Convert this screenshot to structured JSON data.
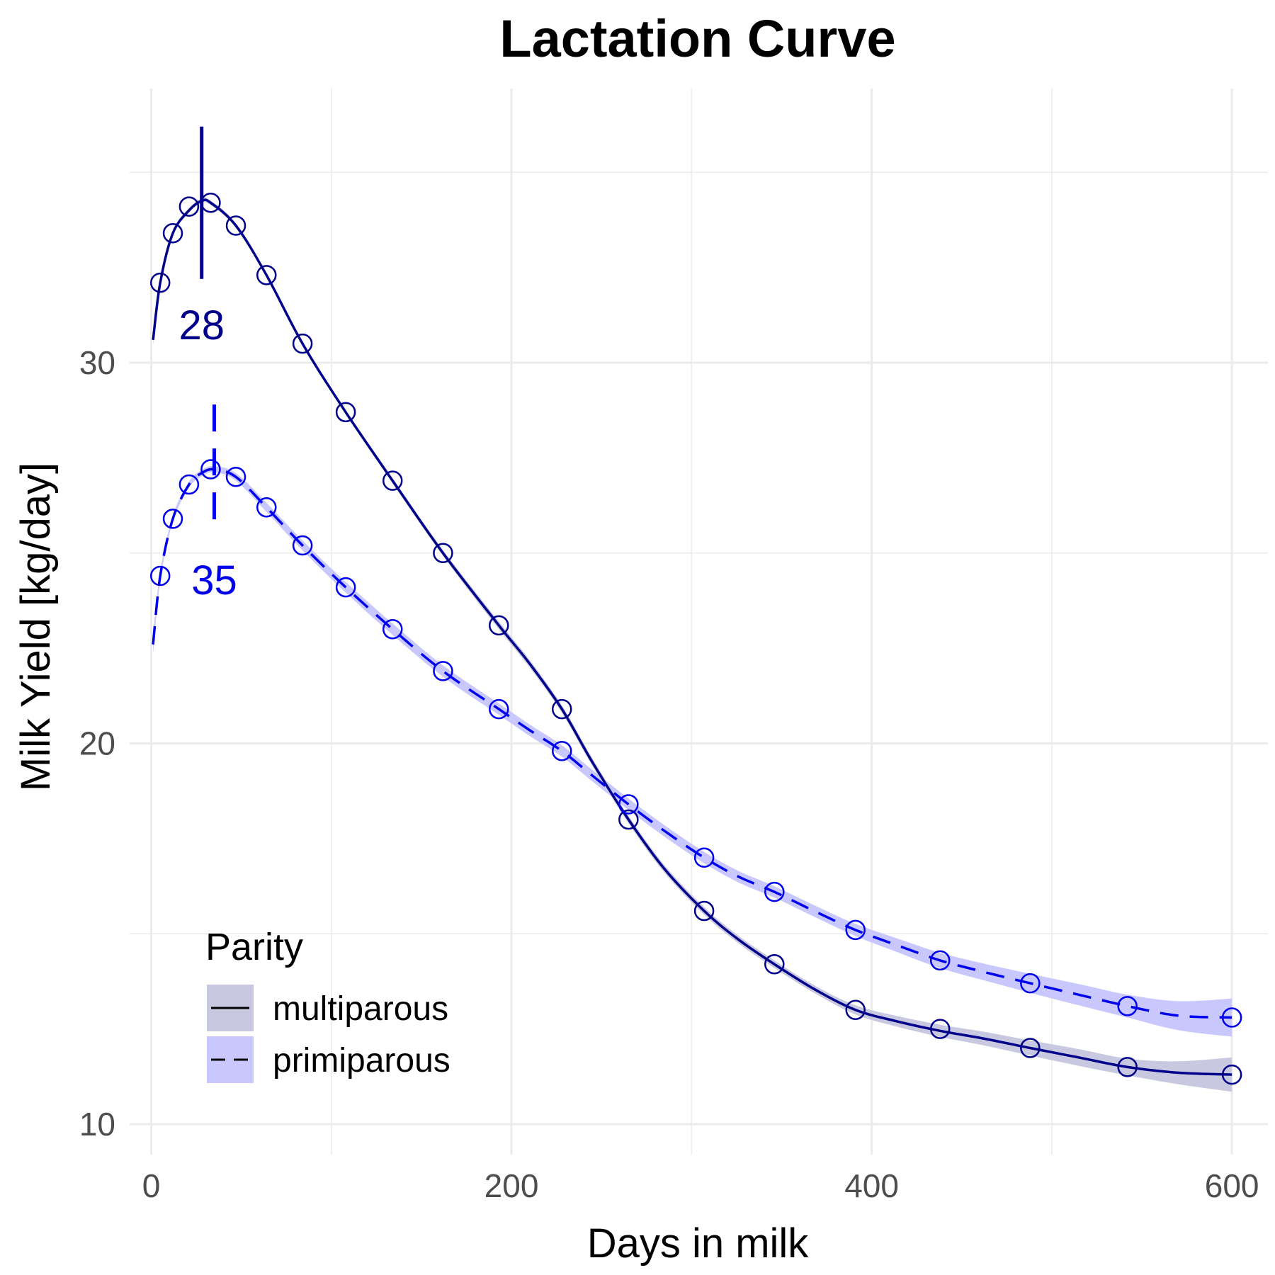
{
  "chart_data": {
    "type": "line",
    "title": "Lactation Curve",
    "xlabel": "Days in milk",
    "ylabel": "Milk Yield [kg/day]",
    "xlim": [
      -12,
      620
    ],
    "ylim": [
      9.2,
      37.2
    ],
    "x_ticks": [
      0,
      200,
      400,
      600
    ],
    "y_ticks": [
      10,
      20,
      30
    ],
    "grid": true,
    "legend": {
      "title": "Parity",
      "position": "bottom-left"
    },
    "series": [
      {
        "name": "multiparous",
        "color": "#00008b",
        "band_color": "#c8c8e0",
        "dash": "solid",
        "peak_day": 28,
        "peak_label": "28",
        "peak_marker_range": [
          32.2,
          36.2
        ],
        "points": {
          "x": [
            5,
            12,
            21,
            33,
            47,
            64,
            84,
            108,
            134,
            162,
            193,
            228,
            265,
            307,
            346,
            391,
            438,
            488,
            542,
            600
          ],
          "y": [
            32.1,
            33.4,
            34.1,
            34.2,
            33.6,
            32.3,
            30.5,
            28.7,
            26.9,
            25.0,
            23.1,
            20.9,
            18.0,
            15.6,
            14.2,
            13.0,
            12.5,
            12.0,
            11.5,
            11.3
          ]
        },
        "curve": {
          "x": [
            1,
            5,
            12,
            21,
            28,
            33,
            47,
            64,
            84,
            108,
            134,
            162,
            193,
            210,
            228,
            245,
            265,
            285,
            307,
            326,
            346,
            368,
            391,
            414,
            438,
            462,
            488,
            515,
            542,
            570,
            600
          ],
          "y": [
            30.6,
            32.1,
            33.4,
            34.0,
            34.25,
            34.2,
            33.6,
            32.3,
            30.5,
            28.7,
            26.9,
            25.0,
            23.1,
            22.1,
            20.9,
            19.5,
            18.0,
            16.7,
            15.6,
            14.85,
            14.2,
            13.55,
            13.0,
            12.7,
            12.45,
            12.25,
            12.0,
            11.75,
            11.5,
            11.35,
            11.3
          ]
        },
        "band_halfwidth": [
          0.15,
          0.08,
          0.06,
          0.06,
          0.06,
          0.06,
          0.06,
          0.06,
          0.06,
          0.06,
          0.07,
          0.08,
          0.1,
          0.1,
          0.1,
          0.1,
          0.1,
          0.1,
          0.1,
          0.1,
          0.1,
          0.1,
          0.12,
          0.14,
          0.16,
          0.18,
          0.2,
          0.22,
          0.22,
          0.3,
          0.45
        ]
      },
      {
        "name": "primiparous",
        "color": "#0000ee",
        "band_color": "#c8c8ff",
        "dash": "dashed",
        "peak_day": 35,
        "peak_label": "35",
        "peak_marker_range": [
          25.5,
          28.9
        ],
        "points": {
          "x": [
            5,
            12,
            21,
            33,
            47,
            64,
            84,
            108,
            134,
            162,
            193,
            228,
            265,
            307,
            346,
            391,
            438,
            488,
            542,
            600
          ],
          "y": [
            24.4,
            25.9,
            26.8,
            27.2,
            27.0,
            26.2,
            25.2,
            24.1,
            23.0,
            21.9,
            20.9,
            19.8,
            18.4,
            17.0,
            16.1,
            15.1,
            14.3,
            13.7,
            13.1,
            12.8
          ]
        },
        "curve": {
          "x": [
            1,
            5,
            12,
            21,
            28,
            35,
            47,
            64,
            84,
            108,
            134,
            162,
            193,
            210,
            228,
            245,
            265,
            285,
            307,
            326,
            346,
            368,
            391,
            414,
            438,
            462,
            488,
            515,
            542,
            570,
            600
          ],
          "y": [
            22.6,
            24.4,
            25.9,
            26.8,
            27.1,
            27.2,
            27.0,
            26.2,
            25.2,
            24.1,
            23.0,
            21.9,
            20.9,
            20.35,
            19.8,
            19.15,
            18.4,
            17.7,
            17.0,
            16.5,
            16.1,
            15.6,
            15.1,
            14.7,
            14.3,
            14.0,
            13.7,
            13.4,
            13.1,
            12.85,
            12.8
          ]
        },
        "band_halfwidth": [
          0.25,
          0.12,
          0.08,
          0.08,
          0.08,
          0.08,
          0.1,
          0.12,
          0.13,
          0.14,
          0.15,
          0.15,
          0.15,
          0.15,
          0.15,
          0.15,
          0.15,
          0.15,
          0.15,
          0.15,
          0.15,
          0.15,
          0.16,
          0.18,
          0.2,
          0.22,
          0.25,
          0.28,
          0.3,
          0.38,
          0.5
        ]
      }
    ]
  }
}
